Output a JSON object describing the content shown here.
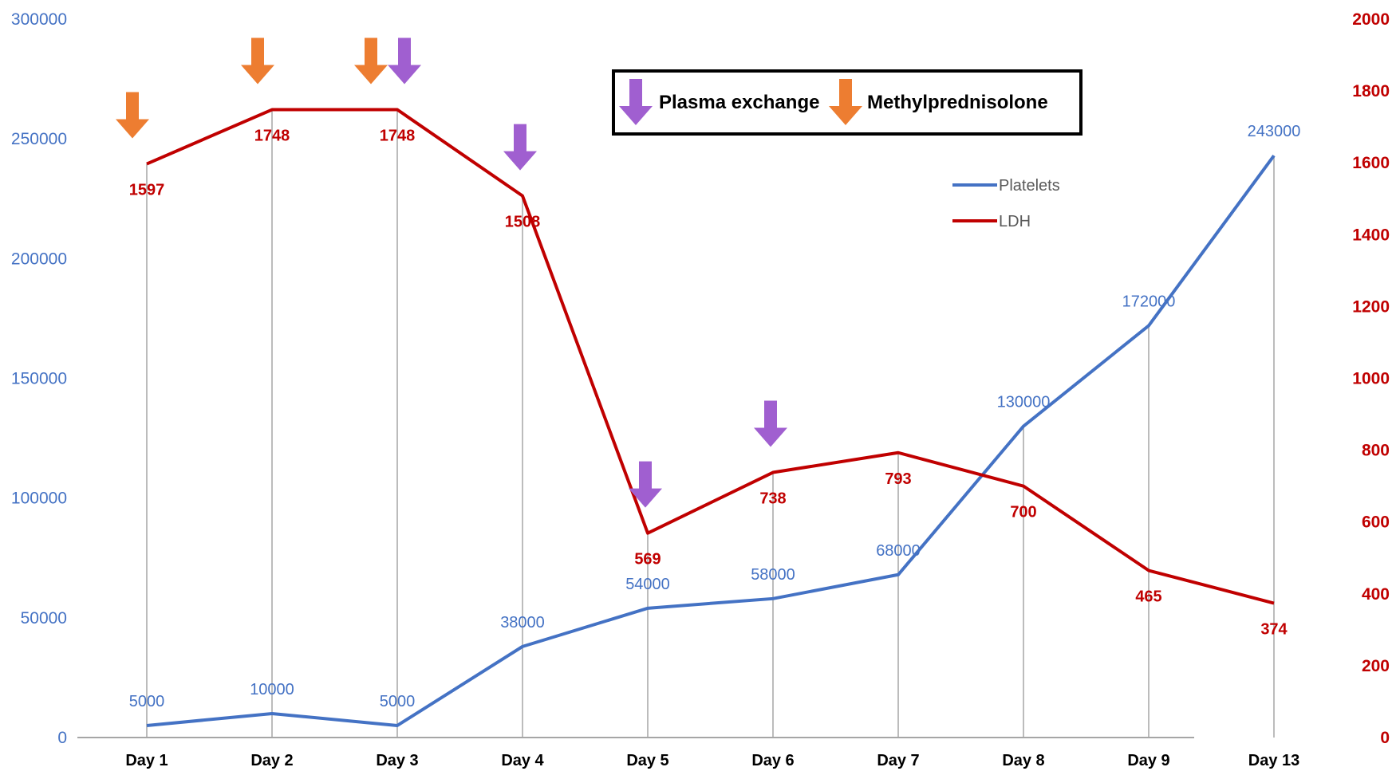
{
  "chart_data": {
    "type": "line",
    "categories": [
      "Day 1",
      "Day 2",
      "Day 3",
      "Day 4",
      "Day 5",
      "Day 6",
      "Day 7",
      "Day 8",
      "Day 9",
      "Day 13"
    ],
    "series": [
      {
        "name": "Platelets",
        "axis": "left",
        "color": "#4472c4",
        "values": [
          5000,
          10000,
          5000,
          38000,
          54000,
          58000,
          68000,
          130000,
          172000,
          243000
        ],
        "labels": [
          "5000",
          "10000",
          "5000",
          "38000",
          "54000",
          "58000",
          "68000",
          "130000",
          "172000",
          "243000"
        ]
      },
      {
        "name": "LDH",
        "axis": "right",
        "color": "#c00000",
        "values": [
          1597,
          1748,
          1748,
          1508,
          569,
          738,
          793,
          700,
          465,
          374
        ],
        "labels": [
          "1597",
          "1748",
          "1748",
          "1508",
          "569",
          "738",
          "793",
          "700",
          "465",
          "374"
        ]
      }
    ],
    "y_left": {
      "lim": [
        0,
        300000
      ],
      "ticks": [
        "0",
        "50000",
        "100000",
        "150000",
        "200000",
        "250000",
        "300000"
      ],
      "color": "#4472c4"
    },
    "y_right": {
      "lim": [
        0,
        2000
      ],
      "ticks": [
        "0",
        "200",
        "400",
        "600",
        "800",
        "1000",
        "1200",
        "1400",
        "1600",
        "1800",
        "2000"
      ],
      "color": "#c00000"
    },
    "legend": {
      "placement": "top-right",
      "entries": [
        {
          "name": "Platelets",
          "color": "#4472c4"
        },
        {
          "name": "LDH",
          "color": "#c00000"
        }
      ]
    },
    "treatment_legend": {
      "placement": "top-center",
      "entries": [
        {
          "name": "Plasma exchange",
          "color": "#a05fd0",
          "icon": "purple-down-arrow-icon"
        },
        {
          "name": "Methylprednisolone",
          "color": "#ed7d31",
          "icon": "orange-down-arrow-icon"
        }
      ]
    },
    "annotations": [
      {
        "type": "Methylprednisolone",
        "category": "Day 1",
        "color": "#ed7d31"
      },
      {
        "type": "Methylprednisolone",
        "category": "Day 2",
        "color": "#ed7d31"
      },
      {
        "type": "Methylprednisolone",
        "category": "Day 3",
        "color": "#ed7d31"
      },
      {
        "type": "Plasma exchange",
        "category": "Day 3",
        "color": "#a05fd0"
      },
      {
        "type": "Plasma exchange",
        "category": "Day 4",
        "color": "#a05fd0"
      },
      {
        "type": "Plasma exchange",
        "category": "Day 5",
        "color": "#a05fd0"
      },
      {
        "type": "Plasma exchange",
        "category": "Day 6",
        "color": "#a05fd0"
      }
    ],
    "vertical_gridlines": true,
    "horizontal_gridlines": false
  }
}
